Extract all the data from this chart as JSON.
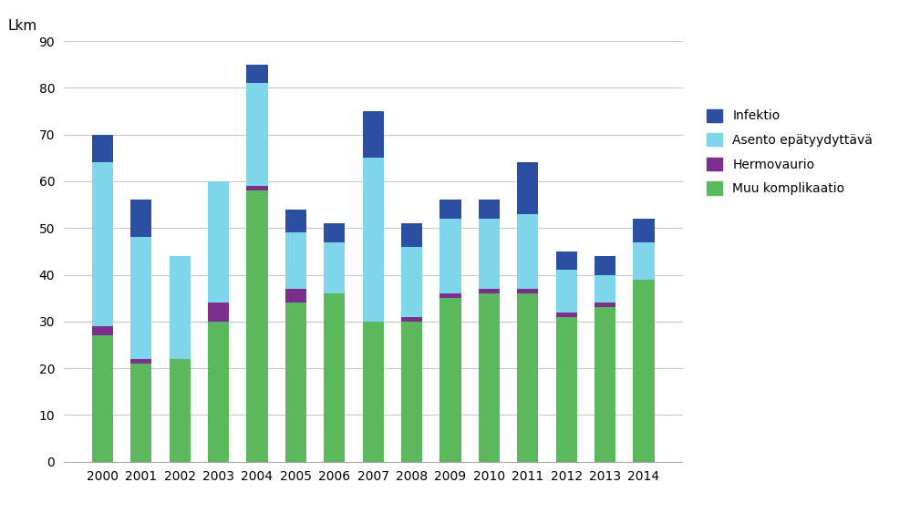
{
  "years": [
    2000,
    2001,
    2002,
    2003,
    2004,
    2005,
    2006,
    2007,
    2008,
    2009,
    2010,
    2011,
    2012,
    2013,
    2014
  ],
  "muu_komplikaatio": [
    27,
    21,
    22,
    30,
    58,
    34,
    36,
    30,
    30,
    35,
    36,
    36,
    31,
    33,
    39
  ],
  "hermovaurio": [
    2,
    1,
    0,
    4,
    1,
    3,
    0,
    0,
    1,
    1,
    1,
    1,
    1,
    1,
    0
  ],
  "asento_epatyydyttava": [
    35,
    26,
    22,
    26,
    22,
    12,
    11,
    35,
    15,
    16,
    15,
    16,
    9,
    6,
    8
  ],
  "infektio": [
    6,
    8,
    0,
    0,
    4,
    5,
    4,
    10,
    5,
    4,
    4,
    11,
    4,
    4,
    5
  ],
  "colors": {
    "muu_komplikaatio": "#5cb85c",
    "hermovaurio": "#7b2f8e",
    "asento_epatyydyttava": "#7dd6ea",
    "infektio": "#2c4fa3"
  },
  "ylabel": "Lkm",
  "ylim": [
    0,
    90
  ],
  "yticks": [
    0,
    10,
    20,
    30,
    40,
    50,
    60,
    70,
    80,
    90
  ],
  "background_color": "#ffffff",
  "grid_color": "#c8c8c8",
  "bar_width": 0.55
}
